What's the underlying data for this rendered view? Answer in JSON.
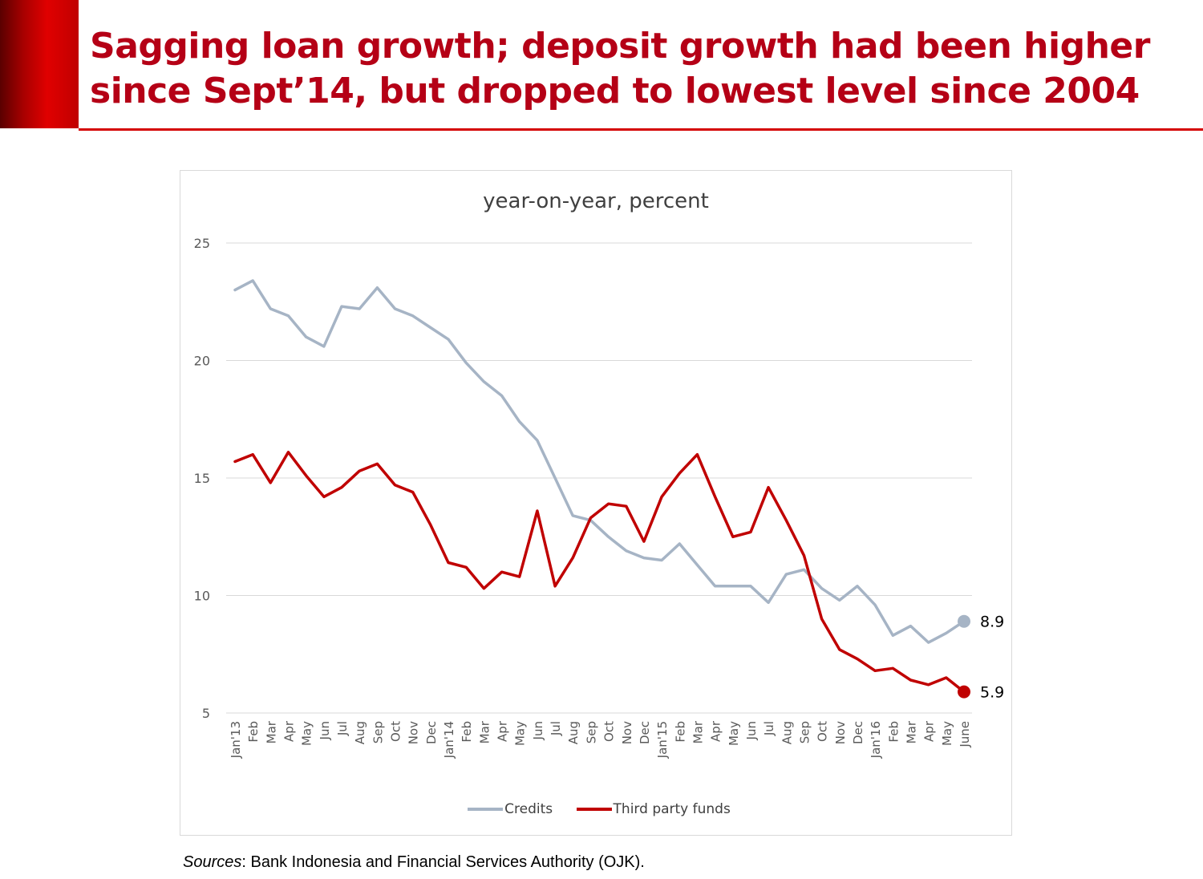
{
  "title": {
    "line1": "Sagging loan growth; deposit growth had been higher",
    "line2": "since Sept’14, but dropped to lowest level since 2004"
  },
  "sources": {
    "label": "Sources",
    "text": ": Bank Indonesia and Financial Services Authority (OJK)."
  },
  "colors": {
    "credits": "#a6b4c5",
    "third_party_funds": "#c00000",
    "title": "#b50016",
    "grid": "#d9d9d9"
  },
  "chart_data": {
    "type": "line",
    "title": "year-on-year, percent",
    "xlabel": "",
    "ylabel": "",
    "ylim": [
      5,
      25
    ],
    "yticks": [
      5,
      10,
      15,
      20,
      25
    ],
    "grid": true,
    "legend_position": "bottom",
    "categories": [
      "Jan'13",
      "Feb",
      "Mar",
      "Apr",
      "May",
      "Jun",
      "Jul",
      "Aug",
      "Sep",
      "Oct",
      "Nov",
      "Dec",
      "Jan'14",
      "Feb",
      "Mar",
      "Apr",
      "May",
      "Jun",
      "Jul",
      "Aug",
      "Sep",
      "Oct",
      "Nov",
      "Dec",
      "Jan'15",
      "Feb",
      "Mar",
      "Apr",
      "May",
      "Jun",
      "Jul",
      "Aug",
      "Sep",
      "Oct",
      "Nov",
      "Dec",
      "Jan'16",
      "Feb",
      "Mar",
      "Apr",
      "May",
      "June"
    ],
    "series": [
      {
        "name": "Credits",
        "color": "#a6b4c5",
        "values": [
          23.0,
          23.4,
          22.2,
          21.9,
          21.0,
          20.6,
          22.3,
          22.2,
          23.1,
          22.2,
          21.9,
          21.4,
          20.9,
          19.9,
          19.1,
          18.5,
          17.4,
          16.6,
          15.0,
          13.4,
          13.2,
          12.5,
          11.9,
          11.6,
          11.5,
          12.2,
          11.3,
          10.4,
          10.4,
          10.4,
          9.7,
          10.9,
          11.1,
          10.3,
          9.8,
          10.4,
          9.6,
          8.3,
          8.7,
          8.0,
          8.4,
          8.9
        ],
        "end_label": "8.9"
      },
      {
        "name": "Third party funds",
        "color": "#c00000",
        "values": [
          15.7,
          16.0,
          14.8,
          16.1,
          15.1,
          14.2,
          14.6,
          15.3,
          15.6,
          14.7,
          14.4,
          13.0,
          11.4,
          11.2,
          10.3,
          11.0,
          10.8,
          13.6,
          10.4,
          11.6,
          13.3,
          13.9,
          13.8,
          12.3,
          14.2,
          15.2,
          16.0,
          14.2,
          12.5,
          12.7,
          14.6,
          13.2,
          11.7,
          9.0,
          7.7,
          7.3,
          6.8,
          6.9,
          6.4,
          6.2,
          6.5,
          5.9
        ],
        "end_label": "5.9"
      }
    ]
  }
}
